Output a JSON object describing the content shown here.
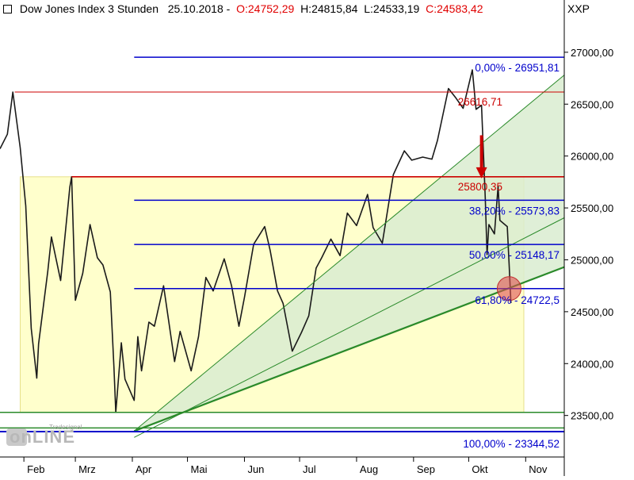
{
  "header": {
    "title": "Dow Jones Index 3 Stunden",
    "date": "25.10.2018",
    "open": "O:24752,29",
    "high": "H:24815,84",
    "low": "L:24533,19",
    "close": "C:24583,42",
    "currency": "XXP"
  },
  "logo": {
    "small": "Tradesignal",
    "main": "onLINE"
  },
  "colors": {
    "fib_blue": "#0000cc",
    "level_red": "#cc0000",
    "channel_green": "#2a8a2a",
    "rect_fill": "#ffffcc",
    "channel_fill": "#d9ecd0",
    "marker": "#e05050",
    "header_red": "#e00000"
  },
  "chart_data": {
    "type": "line",
    "title": "Dow Jones Index 3 Stunden",
    "x_ticks": [
      "Feb",
      "Mrz",
      "Apr",
      "Mai",
      "Jun",
      "Jul",
      "Aug",
      "Sep",
      "Okt",
      "Nov"
    ],
    "y_ticks": [
      "27000,00",
      "26500,00",
      "26000,00",
      "25500,00",
      "25000,00",
      "24500,00",
      "24000,00",
      "23500,00"
    ],
    "y_tick_values": [
      27000,
      26500,
      26000,
      25500,
      25000,
      24500,
      24000,
      23500
    ],
    "ylim": [
      23100,
      27320
    ],
    "xlim": [
      "2018-01-19",
      "2018-11-22"
    ],
    "series": [
      {
        "values": [
          [
            "2018-01-19",
            26070
          ],
          [
            "2018-01-23",
            26210
          ],
          [
            "2018-01-26",
            26616
          ],
          [
            "2018-01-30",
            26080
          ],
          [
            "2018-02-02",
            25520
          ],
          [
            "2018-02-05",
            24340
          ],
          [
            "2018-02-08",
            23860
          ],
          [
            "2018-02-09",
            24190
          ],
          [
            "2018-02-14",
            24890
          ],
          [
            "2018-02-16",
            25220
          ],
          [
            "2018-02-21",
            24800
          ],
          [
            "2018-02-26",
            25700
          ],
          [
            "2018-02-27",
            25800
          ],
          [
            "2018-03-01",
            24610
          ],
          [
            "2018-03-05",
            24870
          ],
          [
            "2018-03-09",
            25340
          ],
          [
            "2018-03-13",
            25020
          ],
          [
            "2018-03-16",
            24950
          ],
          [
            "2018-03-20",
            24690
          ],
          [
            "2018-03-22",
            23960
          ],
          [
            "2018-03-23",
            23530
          ],
          [
            "2018-03-26",
            24200
          ],
          [
            "2018-03-28",
            23850
          ],
          [
            "2018-04-02",
            23645
          ],
          [
            "2018-04-04",
            24260
          ],
          [
            "2018-04-06",
            23930
          ],
          [
            "2018-04-10",
            24400
          ],
          [
            "2018-04-13",
            24360
          ],
          [
            "2018-04-18",
            24750
          ],
          [
            "2018-04-24",
            24020
          ],
          [
            "2018-04-27",
            24310
          ],
          [
            "2018-05-03",
            23930
          ],
          [
            "2018-05-07",
            24260
          ],
          [
            "2018-05-11",
            24830
          ],
          [
            "2018-05-15",
            24700
          ],
          [
            "2018-05-21",
            25010
          ],
          [
            "2018-05-25",
            24750
          ],
          [
            "2018-05-29",
            24360
          ],
          [
            "2018-06-01",
            24640
          ],
          [
            "2018-06-06",
            25150
          ],
          [
            "2018-06-12",
            25320
          ],
          [
            "2018-06-15",
            25090
          ],
          [
            "2018-06-19",
            24700
          ],
          [
            "2018-06-22",
            24580
          ],
          [
            "2018-06-27",
            24120
          ],
          [
            "2018-07-02",
            24300
          ],
          [
            "2018-07-06",
            24460
          ],
          [
            "2018-07-10",
            24920
          ],
          [
            "2018-07-13",
            25020
          ],
          [
            "2018-07-18",
            25200
          ],
          [
            "2018-07-23",
            25040
          ],
          [
            "2018-07-27",
            25450
          ],
          [
            "2018-08-01",
            25330
          ],
          [
            "2018-08-07",
            25630
          ],
          [
            "2018-08-10",
            25310
          ],
          [
            "2018-08-15",
            25160
          ],
          [
            "2018-08-21",
            25820
          ],
          [
            "2018-08-27",
            26050
          ],
          [
            "2018-08-31",
            25960
          ],
          [
            "2018-09-06",
            25990
          ],
          [
            "2018-09-11",
            25970
          ],
          [
            "2018-09-14",
            26150
          ],
          [
            "2018-09-20",
            26650
          ],
          [
            "2018-09-24",
            26560
          ],
          [
            "2018-09-28",
            26460
          ],
          [
            "2018-10-03",
            26830
          ],
          [
            "2018-10-05",
            26450
          ],
          [
            "2018-10-08",
            26490
          ],
          [
            "2018-10-10",
            25600
          ],
          [
            "2018-10-11",
            25050
          ],
          [
            "2018-10-12",
            25340
          ],
          [
            "2018-10-15",
            25250
          ],
          [
            "2018-10-17",
            25710
          ],
          [
            "2018-10-18",
            25380
          ],
          [
            "2018-10-22",
            25320
          ],
          [
            "2018-10-23",
            24960
          ],
          [
            "2018-10-24",
            24583
          ]
        ]
      }
    ],
    "fib_levels": [
      {
        "pct": "0,00%",
        "value": "26951,81",
        "y": 26951.81
      },
      {
        "pct": "38,20%",
        "value": "25573,83",
        "y": 25573.83
      },
      {
        "pct": "50,00%",
        "value": "25148,17",
        "y": 25148.17
      },
      {
        "pct": "61,80%",
        "value": "24722,5",
        "y": 24722.5
      },
      {
        "pct": "100,00%",
        "value": "23344,52",
        "y": 23344.52
      }
    ],
    "red_levels": [
      {
        "label": "26616,71",
        "y": 26616.71
      },
      {
        "label": "25800,35",
        "y": 25800.35
      }
    ],
    "support_lines": [
      23530,
      23380
    ],
    "channel": {
      "start": [
        "2018-04-02",
        23350
      ],
      "lower_end": [
        "2018-11-22",
        24930
      ],
      "upper_end": [
        "2018-11-22",
        26780
      ]
    },
    "rect": {
      "x0": "2018-01-30",
      "x1": "2018-10-31",
      "y0": 23530,
      "y1": 25800
    },
    "marker": {
      "x": "2018-10-23",
      "y": 24722.5
    },
    "arrow": {
      "x": "2018-10-08",
      "from": 26200,
      "to": 25800
    }
  }
}
